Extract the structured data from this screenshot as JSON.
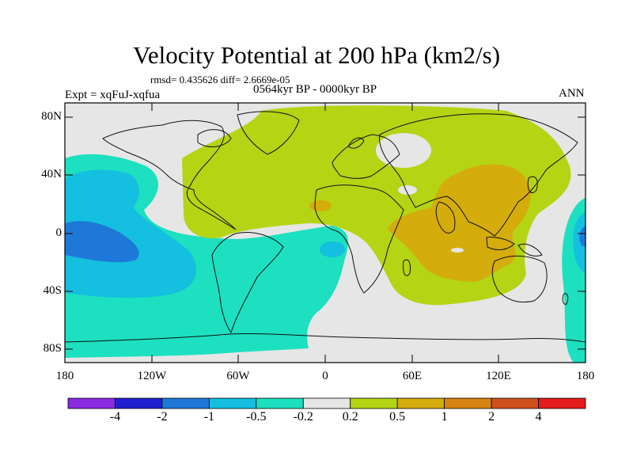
{
  "title": "Velocity Potential at 200 hPa (km2/s)",
  "stats": "rmsd= 0.435626 diff= 2.6669e-05",
  "experiment": "Expt = xqFuJ-xqfua",
  "period": "0564kyr BP - 0000kyr BP",
  "season": "ANN",
  "map": {
    "lon_ticks": [
      "180",
      "120W",
      "60W",
      "0",
      "60E",
      "120E",
      "180"
    ],
    "lat_ticks": [
      "80N",
      "40N",
      "0",
      "40S",
      "80S"
    ]
  },
  "colorbar": {
    "labels": [
      "-4",
      "-2",
      "-1",
      "-0.5",
      "-0.2",
      "0.2",
      "0.5",
      "1",
      "2",
      "4"
    ],
    "colors": [
      "#8a2be2",
      "#2020d0",
      "#1e78d8",
      "#14bfe0",
      "#1de0c0",
      "#e6e6e6",
      "#b4d414",
      "#d4ac0c",
      "#d88412",
      "#d0501c",
      "#e41c1c"
    ]
  }
}
